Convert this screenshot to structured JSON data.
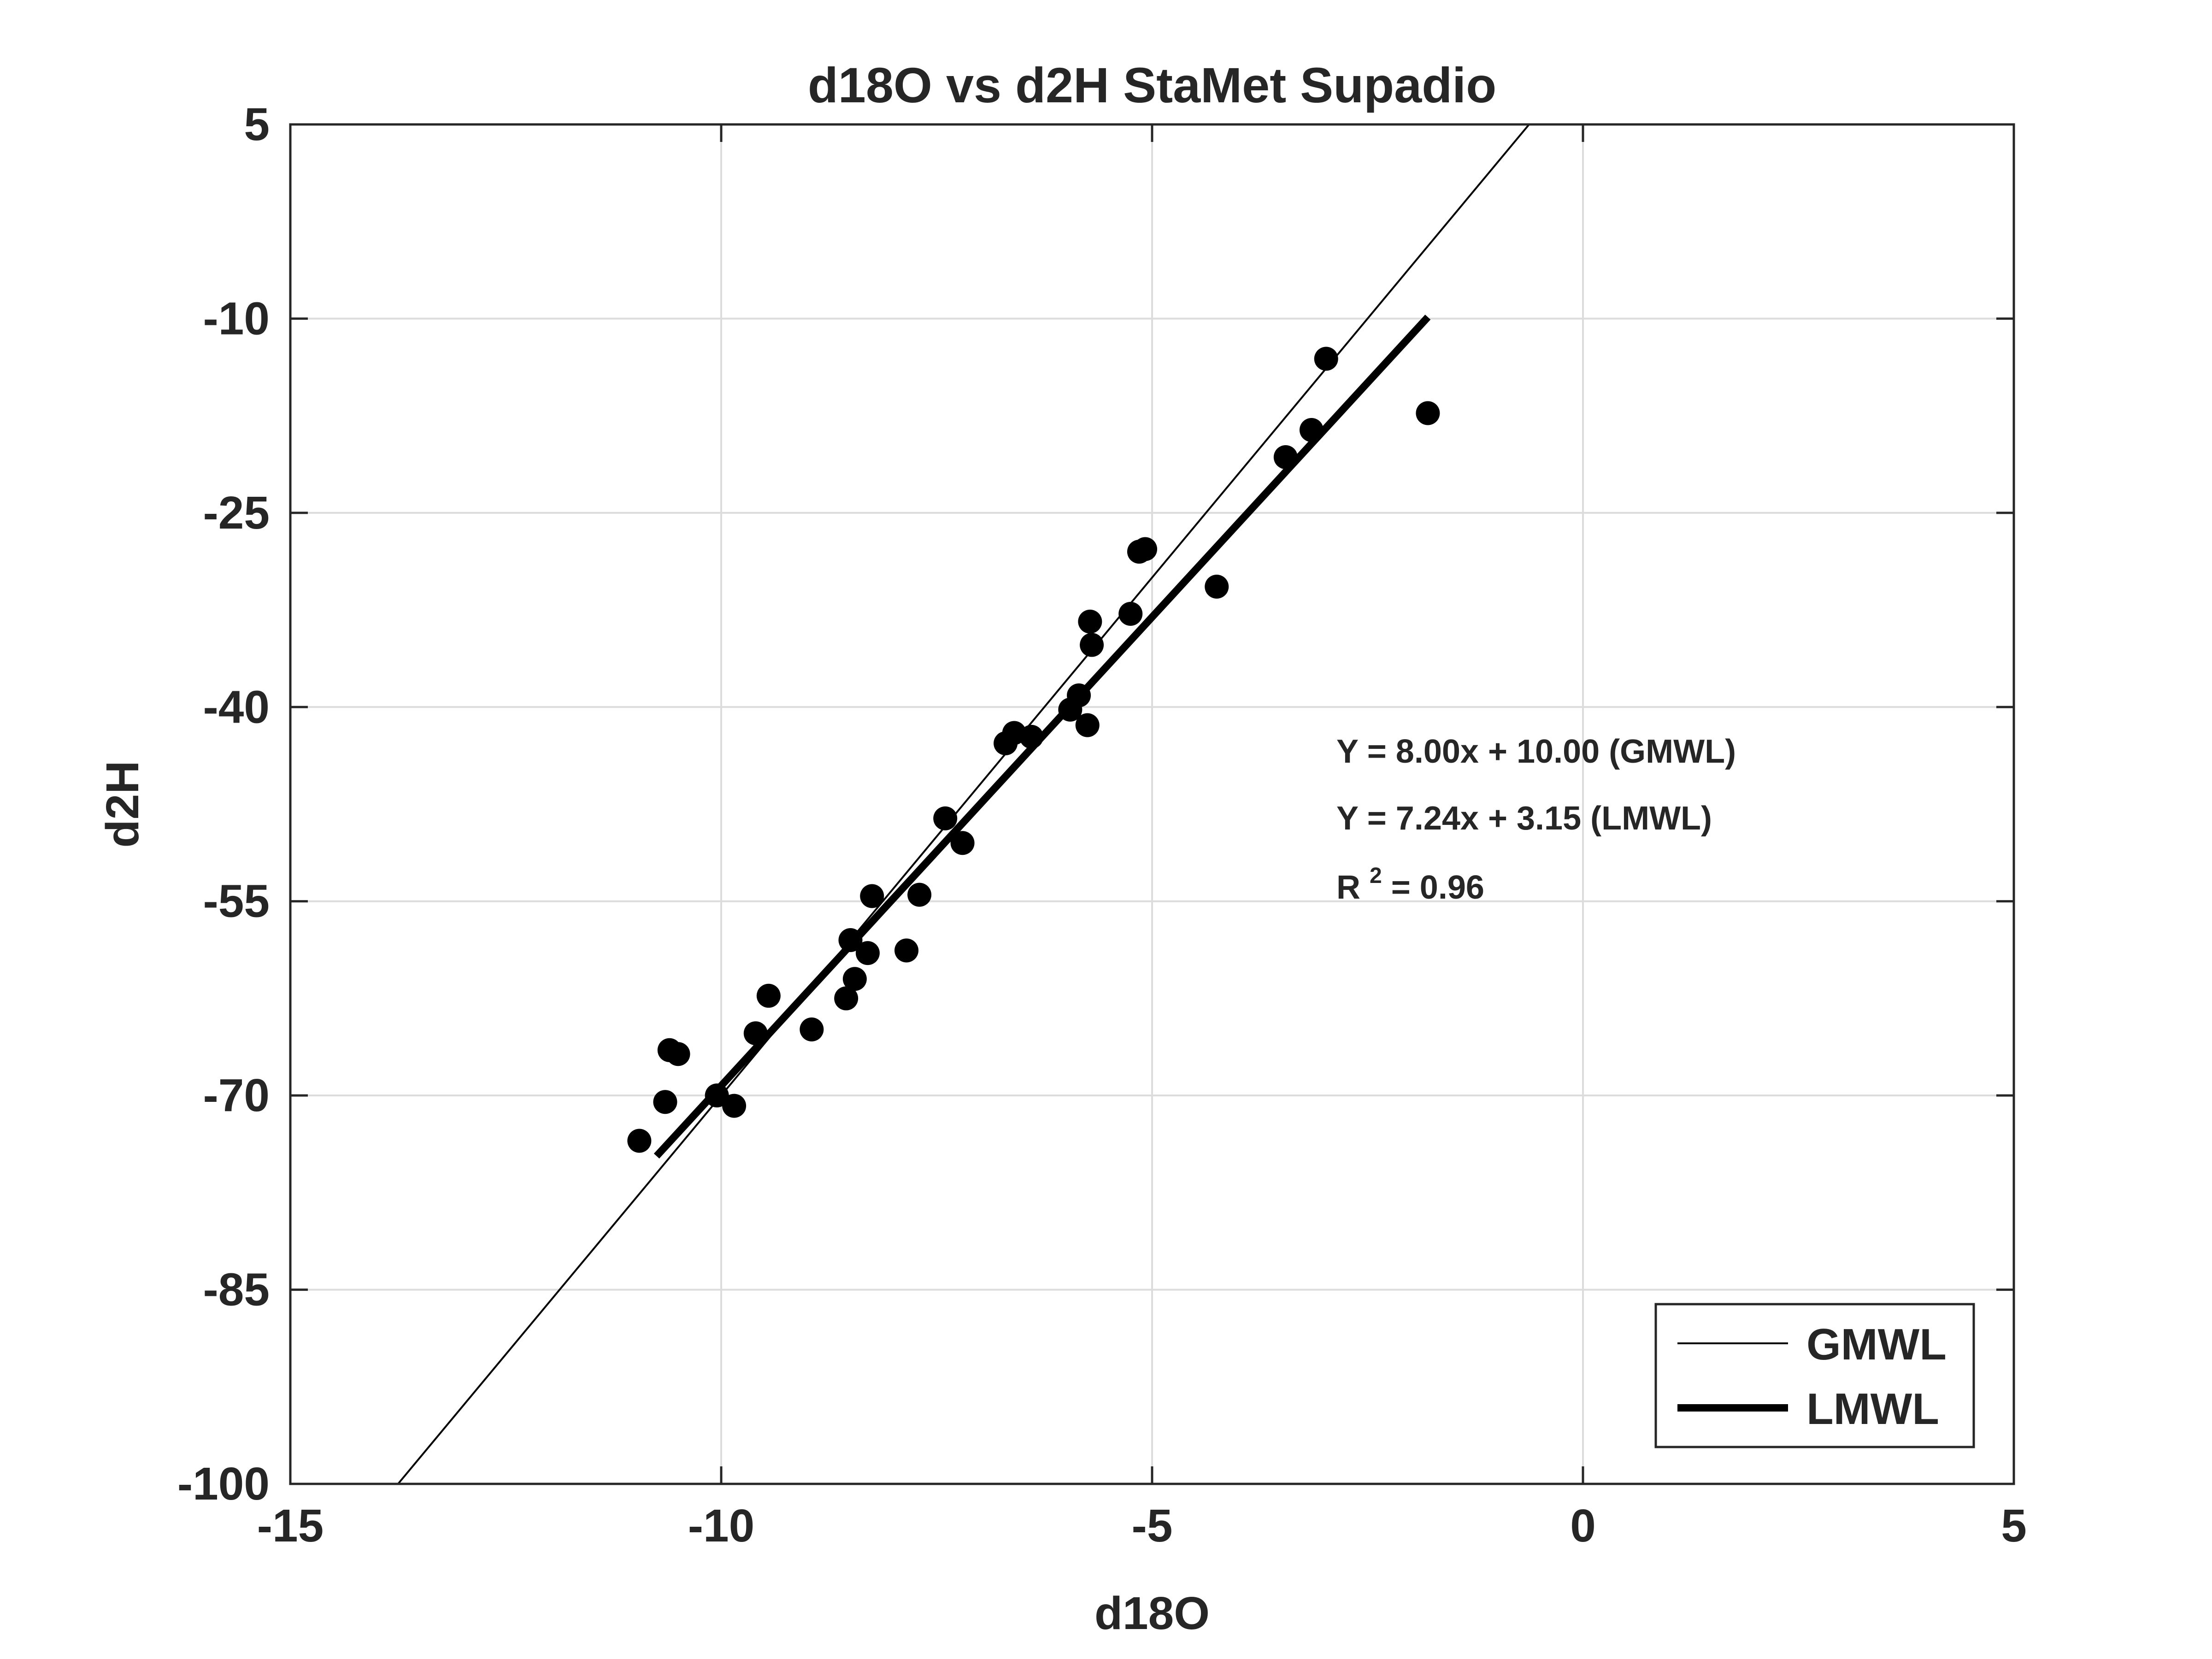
{
  "chart_data": {
    "type": "scatter",
    "title": "d18O vs d2H StaMet Supadio",
    "xlabel": "d18O",
    "ylabel": "d2H",
    "xlim": [
      -15,
      5
    ],
    "ylim": [
      -100,
      5
    ],
    "xticks": [
      -15,
      -10,
      -5,
      0,
      5
    ],
    "xtick_labels": [
      "-15",
      "-10",
      "-5",
      "0",
      "5"
    ],
    "yticks": [
      -100,
      -85,
      -70,
      -55,
      -40,
      -25,
      -10,
      5
    ],
    "ytick_labels": [
      "-100",
      "-85",
      "-70",
      "-55",
      "-40",
      "-25",
      "-10",
      "5"
    ],
    "grid": true,
    "legend_position": "bottom-right",
    "colors": {
      "marker": "#000000",
      "line": "#000000",
      "grid": "#dcdcdc",
      "axes": "#262626"
    },
    "points": {
      "x": [
        -10.95,
        -10.65,
        -10.6,
        -10.5,
        -10.05,
        -9.85,
        -9.6,
        -9.45,
        -8.95,
        -8.55,
        -8.5,
        -8.45,
        -8.3,
        -8.25,
        -7.85,
        -7.7,
        -7.4,
        -7.2,
        -6.7,
        -6.6,
        -6.4,
        -5.95,
        -5.85,
        -5.75,
        -5.72,
        -5.7,
        -5.25,
        -5.15,
        -5.08,
        -4.25,
        -3.45,
        -3.15,
        -2.98,
        -1.8
      ],
      "y": [
        -73.5,
        -70.5,
        -66.5,
        -66.8,
        -70.0,
        -70.8,
        -65.2,
        -62.3,
        -64.9,
        -62.5,
        -58.0,
        -61.0,
        -59.0,
        -54.6,
        -58.8,
        -54.5,
        -48.6,
        -50.5,
        -42.8,
        -42.0,
        -42.3,
        -40.2,
        -39.1,
        -41.4,
        -33.4,
        -35.2,
        -32.8,
        -28.0,
        -27.8,
        -30.7,
        -20.7,
        -18.6,
        -13.1,
        -17.3
      ]
    },
    "lines": [
      {
        "name": "GMWL",
        "slope": 8.0,
        "intercept": 10.0,
        "x_range": [
          -13.75,
          -0.625
        ],
        "stroke": "thin"
      },
      {
        "name": "LMWL",
        "slope": 7.24,
        "intercept": 3.15,
        "x_range": [
          -10.75,
          -1.8
        ],
        "stroke": "thick"
      }
    ],
    "annotations": {
      "gmwl_eq": "Y = 8.00x + 10.00 (GMWL)",
      "lmwl_eq": "Y = 7.24x + 3.15 (LMWL)",
      "r2_prefix": "R",
      "r2_sup": "2",
      "r2_value": " = 0.96"
    }
  }
}
